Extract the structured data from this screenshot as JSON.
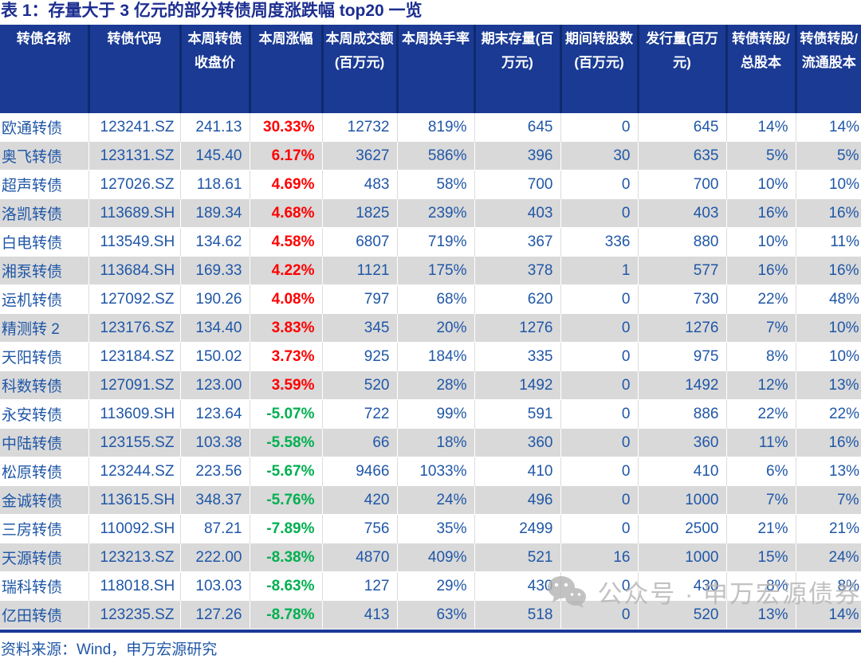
{
  "title": "表 1：存量大于 3 亿元的部分转债周度涨跌幅 top20 一览",
  "source_note": "资料来源：Wind，申万宏源研究",
  "watermark": {
    "icon": "wechat-icon",
    "text": "公众号 · 申万宏源债券"
  },
  "colors": {
    "header_bg": "#1a3a94",
    "header_divider": "#0e2a6e",
    "title_text": "#1c2e90",
    "data_text": "#2057a7",
    "up": "#ff0000",
    "down": "#00b050",
    "stripe": "#d9d9d9",
    "bottom_rule": "#1b3a97",
    "watermark_gray": "#b3b3b3"
  },
  "table": {
    "columns": [
      "转债名称",
      "转债代码",
      "本周转债收盘价",
      "本周涨幅",
      "本周成交额(百万元)",
      "本周换手率",
      "期末存量(百万元)",
      "期间转股数(百万元)",
      "发行量(百万元)",
      "转债转股/总股本",
      "转债转股/流通股本"
    ],
    "rows": [
      [
        "欧通转债",
        "123241.SZ",
        "241.13",
        "30.33%",
        "12732",
        "819%",
        "645",
        "0",
        "645",
        "14%",
        "14%"
      ],
      [
        "奥飞转债",
        "123131.SZ",
        "145.40",
        "6.17%",
        "3627",
        "586%",
        "396",
        "30",
        "635",
        "5%",
        "5%"
      ],
      [
        "超声转债",
        "127026.SZ",
        "118.61",
        "4.69%",
        "483",
        "58%",
        "700",
        "0",
        "700",
        "10%",
        "10%"
      ],
      [
        "洛凯转债",
        "113689.SH",
        "189.34",
        "4.68%",
        "1825",
        "239%",
        "403",
        "0",
        "403",
        "16%",
        "16%"
      ],
      [
        "白电转债",
        "113549.SH",
        "134.62",
        "4.58%",
        "6807",
        "719%",
        "367",
        "336",
        "880",
        "10%",
        "11%"
      ],
      [
        "湘泵转债",
        "113684.SH",
        "169.33",
        "4.22%",
        "1121",
        "175%",
        "378",
        "1",
        "577",
        "16%",
        "16%"
      ],
      [
        "运机转债",
        "127092.SZ",
        "190.26",
        "4.08%",
        "797",
        "68%",
        "620",
        "0",
        "730",
        "22%",
        "48%"
      ],
      [
        "精测转 2",
        "123176.SZ",
        "134.40",
        "3.83%",
        "345",
        "20%",
        "1276",
        "0",
        "1276",
        "7%",
        "10%"
      ],
      [
        "天阳转债",
        "123184.SZ",
        "150.02",
        "3.73%",
        "925",
        "184%",
        "335",
        "0",
        "975",
        "8%",
        "10%"
      ],
      [
        "科数转债",
        "127091.SZ",
        "123.00",
        "3.59%",
        "520",
        "28%",
        "1492",
        "0",
        "1492",
        "12%",
        "13%"
      ],
      [
        "永安转债",
        "113609.SH",
        "123.64",
        "-5.07%",
        "722",
        "99%",
        "591",
        "0",
        "886",
        "22%",
        "22%"
      ],
      [
        "中陆转债",
        "123155.SZ",
        "103.38",
        "-5.58%",
        "66",
        "18%",
        "360",
        "0",
        "360",
        "11%",
        "16%"
      ],
      [
        "松原转债",
        "123244.SZ",
        "223.56",
        "-5.67%",
        "9466",
        "1033%",
        "410",
        "0",
        "410",
        "6%",
        "13%"
      ],
      [
        "金诚转债",
        "113615.SH",
        "348.37",
        "-5.76%",
        "420",
        "24%",
        "496",
        "0",
        "1000",
        "7%",
        "7%"
      ],
      [
        "三房转债",
        "110092.SH",
        "87.21",
        "-7.89%",
        "756",
        "35%",
        "2499",
        "0",
        "2500",
        "21%",
        "21%"
      ],
      [
        "天源转债",
        "123213.SZ",
        "222.00",
        "-8.38%",
        "4870",
        "409%",
        "521",
        "16",
        "1000",
        "15%",
        "24%"
      ],
      [
        "瑞科转债",
        "118018.SH",
        "103.03",
        "-8.63%",
        "127",
        "29%",
        "430",
        "0",
        "430",
        "8%",
        "8%"
      ],
      [
        "亿田转债",
        "123235.SZ",
        "127.26",
        "-8.78%",
        "413",
        "63%",
        "518",
        "0",
        "520",
        "13%",
        "14%"
      ]
    ]
  }
}
